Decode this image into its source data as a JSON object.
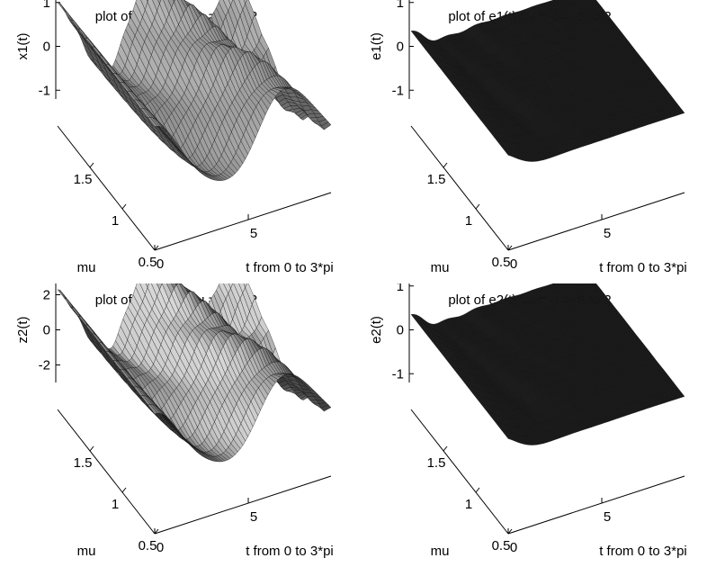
{
  "chart_data": [
    {
      "type": "surface",
      "title": "plot of x1(t) for mu = .5 to  2",
      "xlabel": "t from 0 to 3*pi",
      "ylabel": "mu",
      "zlabel": "x1(t)",
      "x_range": [
        0,
        9.42
      ],
      "y_range": [
        0.5,
        2
      ],
      "z_range": [
        -1.2,
        1.2
      ],
      "x_ticks": [
        "0",
        "5"
      ],
      "y_ticks": [
        "0.5",
        "1",
        "1.5"
      ],
      "z_ticks": [
        "1",
        "0",
        "-1"
      ],
      "surface": "oscillation"
    },
    {
      "type": "surface",
      "title": "plot of e1(t) for mu = .5 to  2",
      "xlabel": "t from 0 to 3*pi",
      "ylabel": "mu",
      "zlabel": "e1(t)",
      "x_range": [
        0,
        9.42
      ],
      "y_range": [
        0.5,
        2
      ],
      "z_range": [
        -1.2,
        1.2
      ],
      "x_ticks": [
        "0",
        "5"
      ],
      "y_ticks": [
        "0.5",
        "1",
        "1.5"
      ],
      "z_ticks": [
        "1",
        "0",
        "-1"
      ],
      "surface": "decay"
    },
    {
      "type": "surface",
      "title": "plot of z2(t) for mu = .5 to  2",
      "xlabel": "t from 0 to 3*pi",
      "ylabel": "mu",
      "zlabel": "z2(t)",
      "x_range": [
        0,
        9.42
      ],
      "y_range": [
        0.5,
        2
      ],
      "z_range": [
        -3,
        3
      ],
      "x_ticks": [
        "0",
        "5"
      ],
      "y_ticks": [
        "0.5",
        "1",
        "1.5"
      ],
      "z_ticks": [
        "2",
        "0",
        "-2"
      ],
      "surface": "oscillation"
    },
    {
      "type": "surface",
      "title": "plot of e2(t) for mu = .5 to  2",
      "xlabel": "t from 0 to 3*pi",
      "ylabel": "mu",
      "zlabel": "e2(t)",
      "x_range": [
        0,
        9.42
      ],
      "y_range": [
        0.5,
        2
      ],
      "z_range": [
        -1.2,
        1.2
      ],
      "x_ticks": [
        "0",
        "5"
      ],
      "y_ticks": [
        "0.5",
        "1",
        "1.5"
      ],
      "z_ticks": [
        "1",
        "0",
        "-1"
      ],
      "surface": "decay"
    }
  ]
}
